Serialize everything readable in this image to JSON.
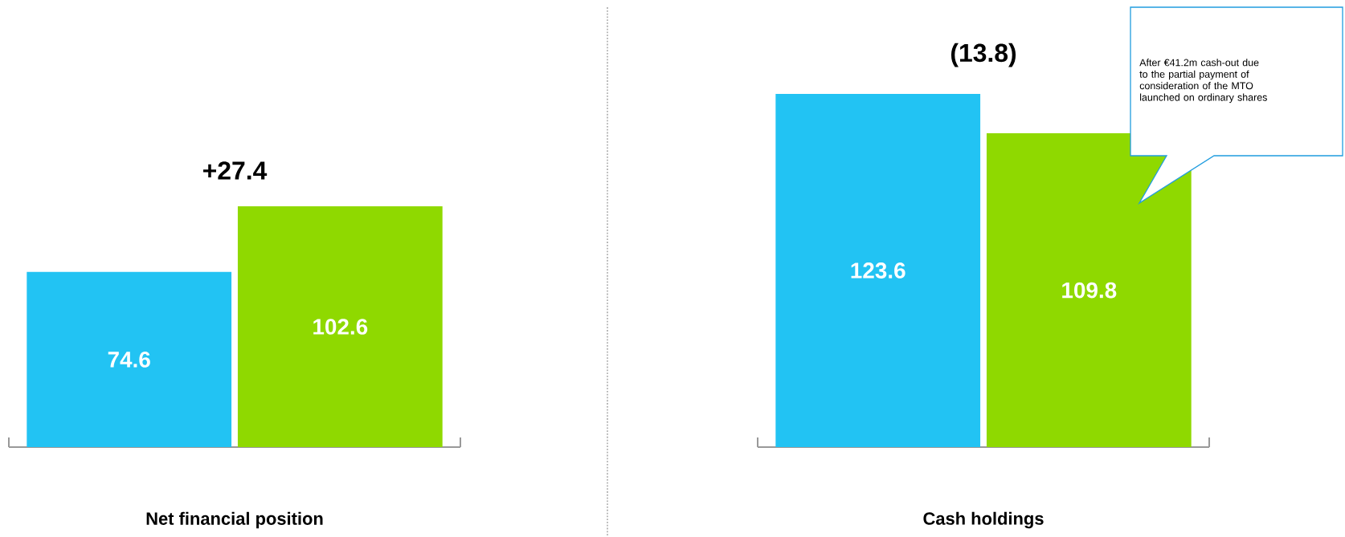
{
  "chart_data": [
    {
      "type": "bar",
      "xlabel": "Net financial position",
      "categories": [
        null,
        null
      ],
      "values": [
        74.6,
        102.6
      ],
      "colors": [
        "#22c3f3",
        "#8fd900"
      ],
      "data_labels": true,
      "ylim": [
        0,
        102.6
      ],
      "annotations": [
        "+27.4"
      ]
    },
    {
      "type": "bar",
      "xlabel": "Cash holdings",
      "categories": [
        null,
        null
      ],
      "values": [
        123.6,
        109.8
      ],
      "colors": [
        "#22c3f3",
        "#8fd900"
      ],
      "data_labels": true,
      "ylim": [
        0,
        123.6
      ],
      "annotations": [
        "(13.8)",
        "After €41.2m cash-out due to the partial payment of consideration of the MTO launched on ordinary shares"
      ]
    }
  ]
}
